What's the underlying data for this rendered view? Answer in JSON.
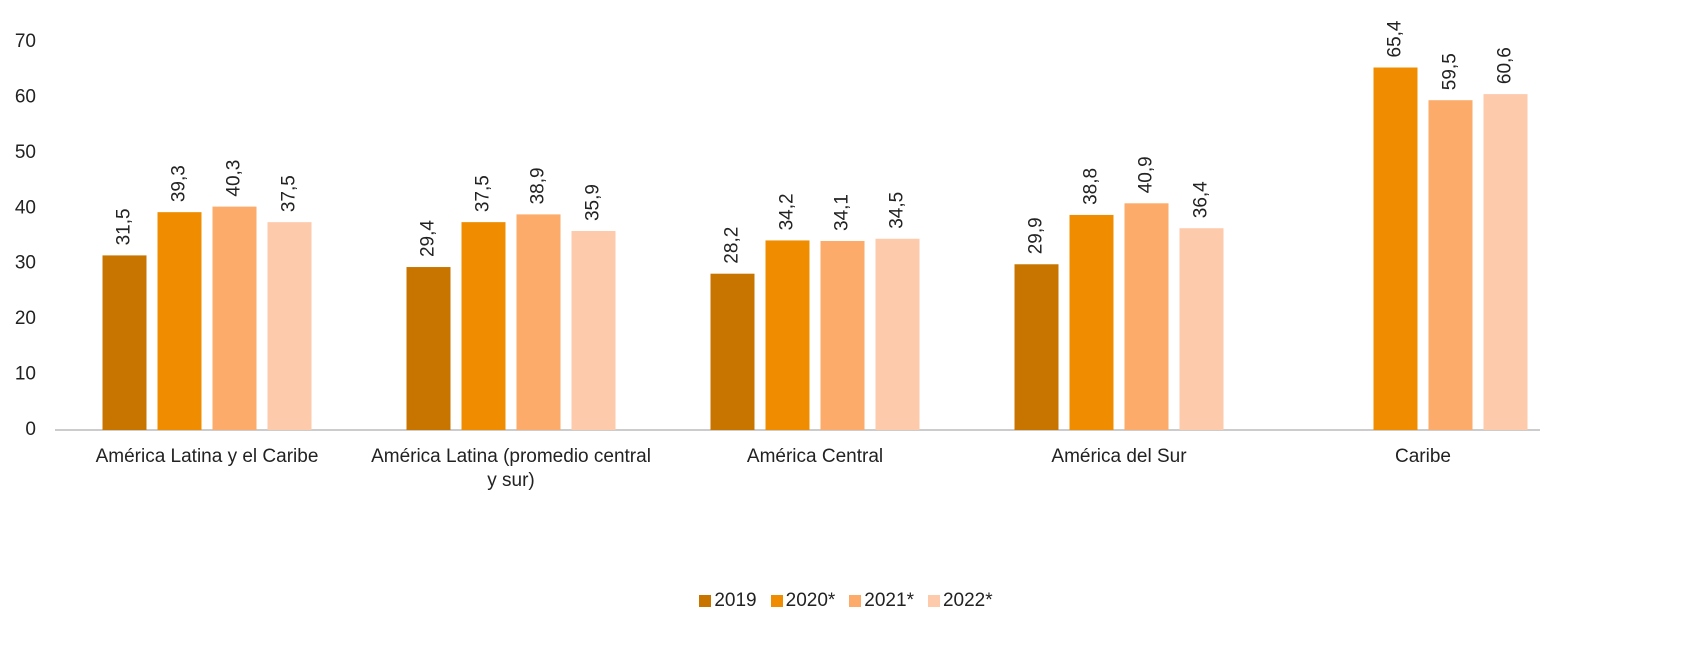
{
  "chart_data": {
    "type": "bar",
    "categories": [
      "América Latina y el Caribe",
      "América Latina (promedio central y sur)",
      "América Central",
      "América del Sur",
      "Caribe"
    ],
    "series": [
      {
        "name": "2019",
        "color": "#c87500",
        "values": [
          31.5,
          29.4,
          28.2,
          29.9,
          null
        ],
        "value_labels": [
          "31,5",
          "29,4",
          "28,2",
          "29,9",
          null
        ]
      },
      {
        "name": "2020*",
        "color": "#ef8c00",
        "values": [
          39.3,
          37.5,
          34.2,
          38.8,
          65.4
        ],
        "value_labels": [
          "39,3",
          "37,5",
          "34,2",
          "38,8",
          "65,4"
        ]
      },
      {
        "name": "2021*",
        "color": "#fcab6a",
        "values": [
          40.3,
          38.9,
          34.1,
          40.9,
          59.5
        ],
        "value_labels": [
          "40,3",
          "38,9",
          "34,1",
          "40,9",
          "59,5"
        ]
      },
      {
        "name": "2022*",
        "color": "#fdcaab",
        "values": [
          37.5,
          35.9,
          34.5,
          36.4,
          60.6
        ],
        "value_labels": [
          "37,5",
          "35,9",
          "34,5",
          "36,4",
          "60,6"
        ]
      }
    ],
    "ylim": [
      0,
      70
    ],
    "yticks": [
      0,
      10,
      20,
      30,
      40,
      50,
      60,
      70
    ],
    "legend": "bottom"
  }
}
